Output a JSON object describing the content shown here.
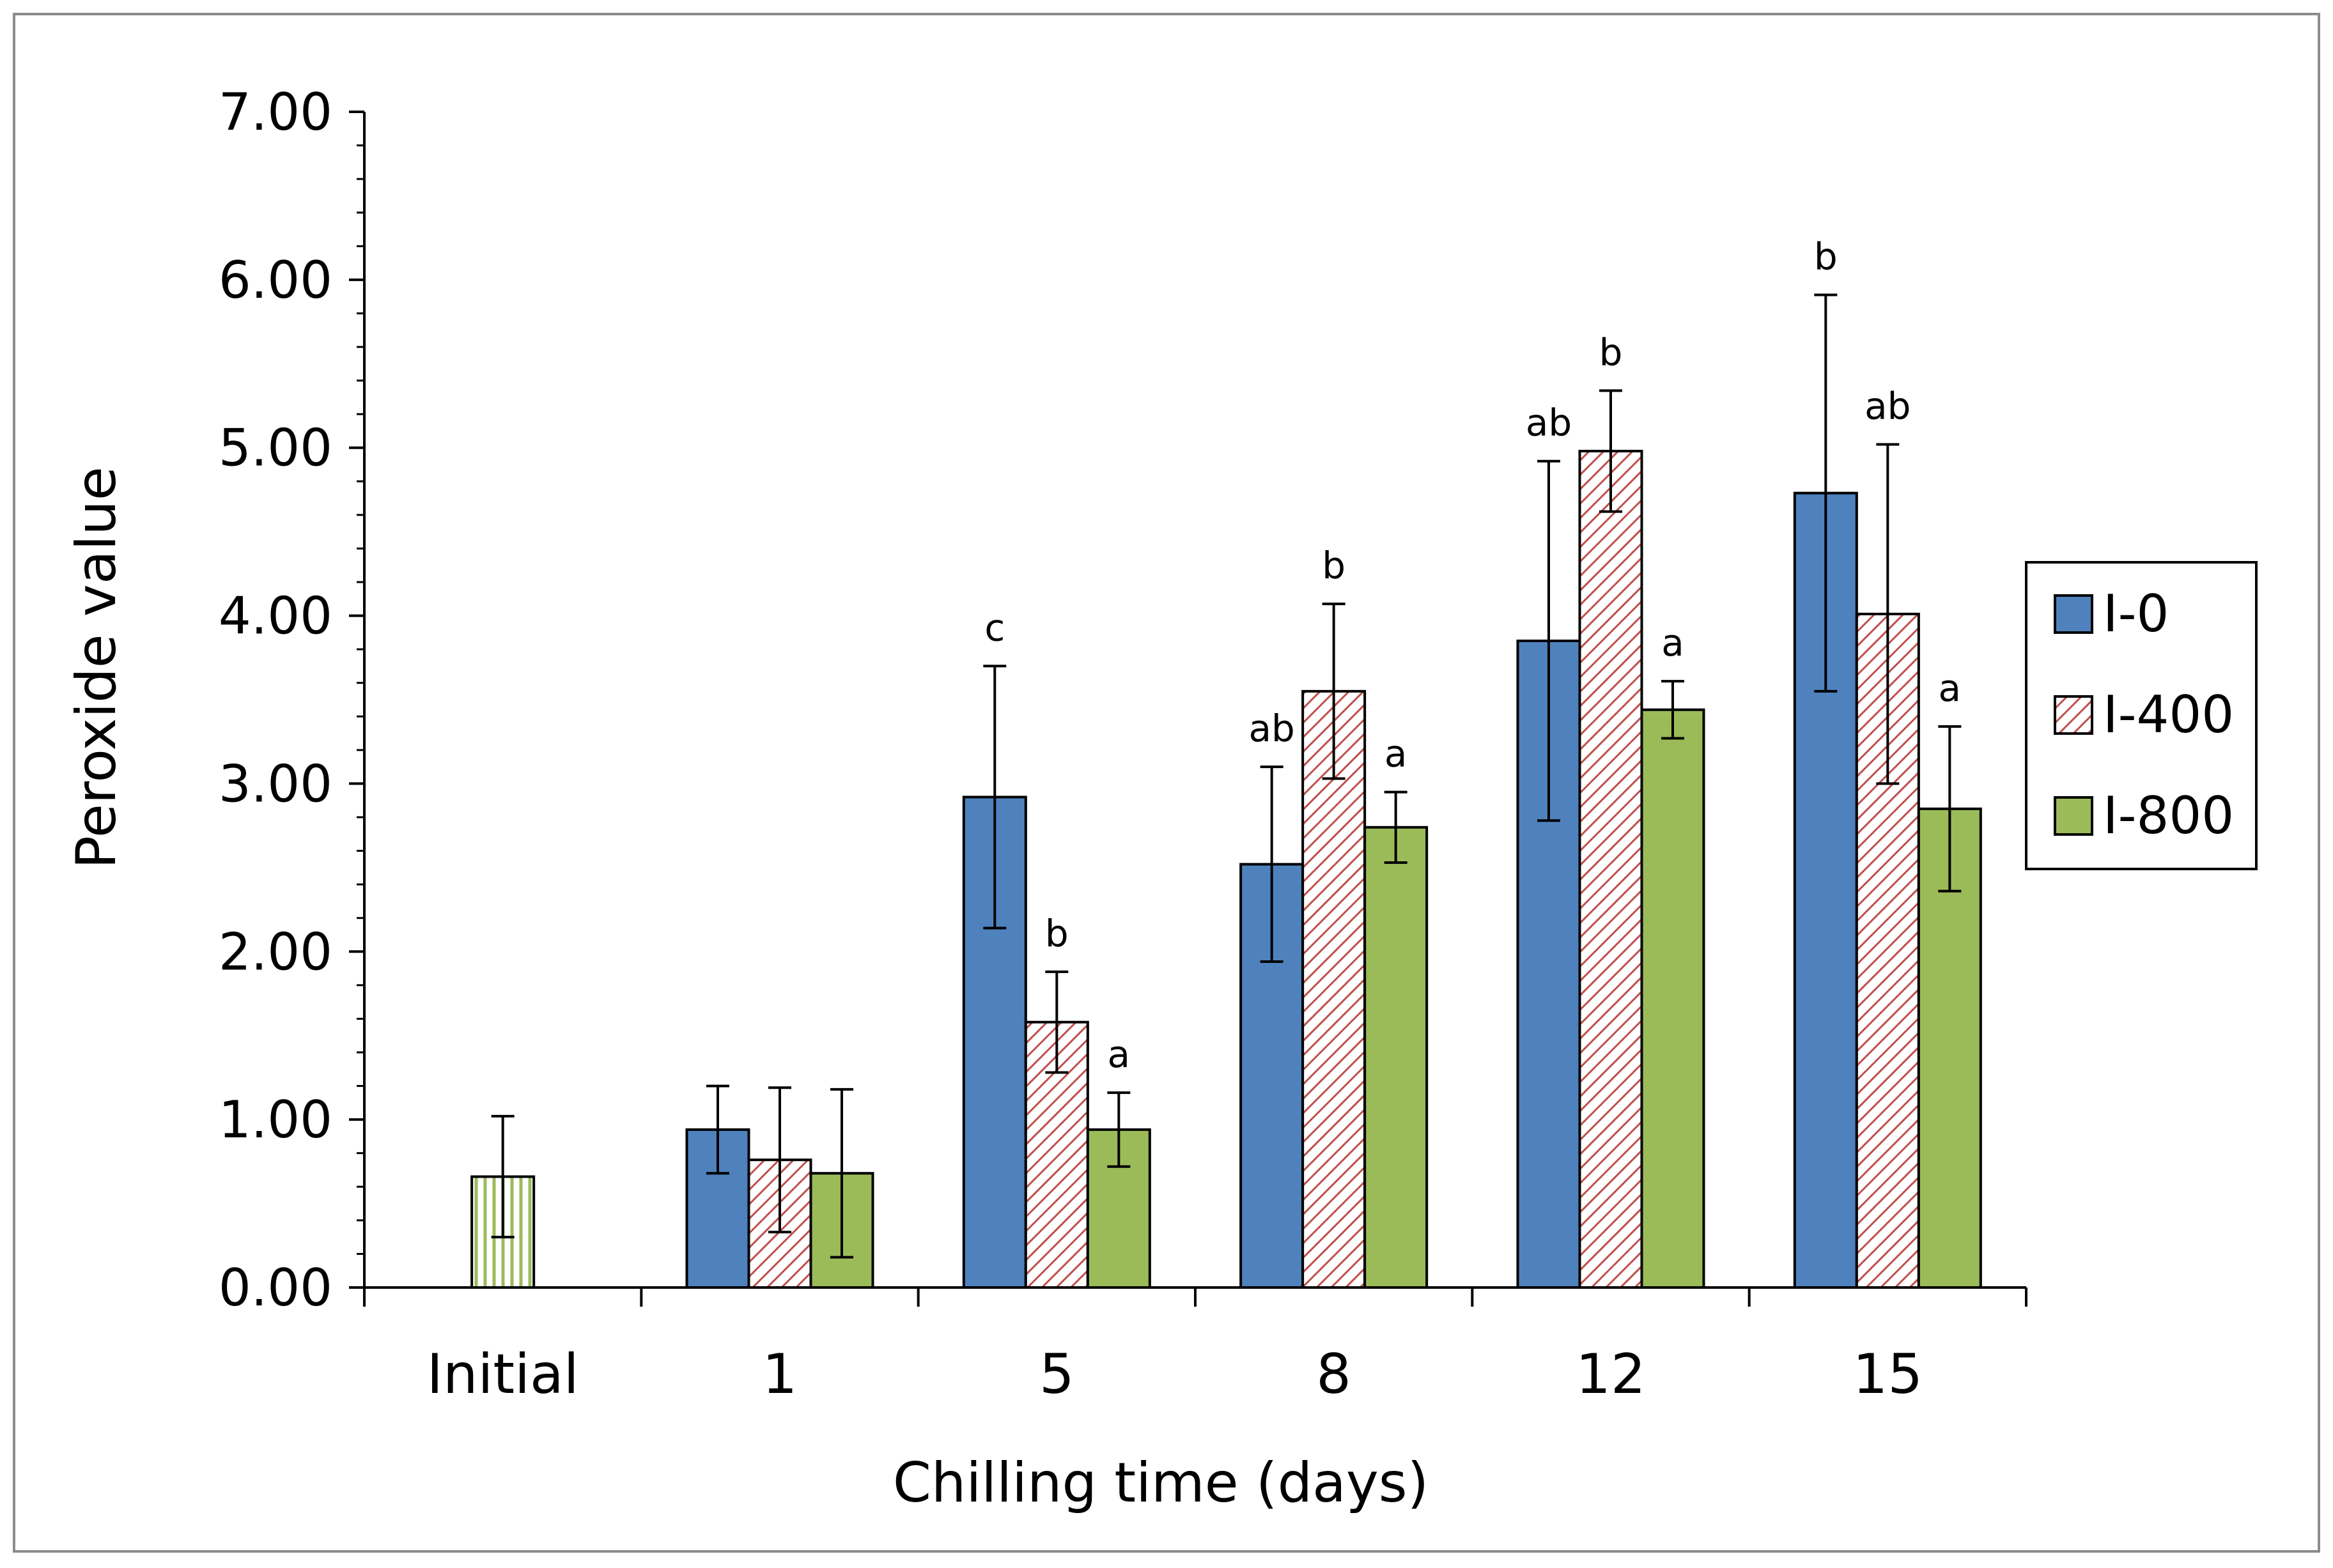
{
  "chart_data": {
    "type": "bar",
    "title": "",
    "xlabel": "Chilling time (days)",
    "ylabel": "Peroxide value",
    "ylim": [
      0,
      7
    ],
    "yticks": [
      "0.00",
      "1.00",
      "2.00",
      "3.00",
      "4.00",
      "5.00",
      "6.00",
      "7.00"
    ],
    "categories": [
      "Initial",
      "1",
      "5",
      "8",
      "12",
      "15"
    ],
    "initial": {
      "value": 0.66,
      "error": 0.36,
      "color": "#9bbb59"
    },
    "series": [
      {
        "name": "I-0",
        "color": "#4f81bd",
        "pattern": "solid",
        "values": [
          null,
          0.94,
          2.92,
          2.52,
          3.85,
          4.73
        ],
        "errors": [
          null,
          0.26,
          0.78,
          0.58,
          1.07,
          1.18
        ],
        "letters": [
          null,
          "",
          "c",
          "ab",
          "ab",
          "b"
        ]
      },
      {
        "name": "I-400",
        "color": "#c0504d",
        "pattern": "diagonal-hatch",
        "values": [
          null,
          0.76,
          1.58,
          3.55,
          4.98,
          4.01
        ],
        "errors": [
          null,
          0.43,
          0.3,
          0.52,
          0.36,
          1.01
        ],
        "letters": [
          null,
          "",
          "b",
          "b",
          "b",
          "ab"
        ]
      },
      {
        "name": "I-800",
        "color": "#9bbb59",
        "pattern": "solid",
        "values": [
          null,
          0.68,
          0.94,
          2.74,
          3.44,
          2.85
        ],
        "errors": [
          null,
          0.5,
          0.22,
          0.21,
          0.17,
          0.49
        ],
        "letters": [
          null,
          "",
          "a",
          "a",
          "a",
          "a"
        ]
      }
    ],
    "legend": {
      "position": "right",
      "entries": [
        "I-0",
        "I-400",
        "I-800"
      ]
    },
    "grid": false
  }
}
